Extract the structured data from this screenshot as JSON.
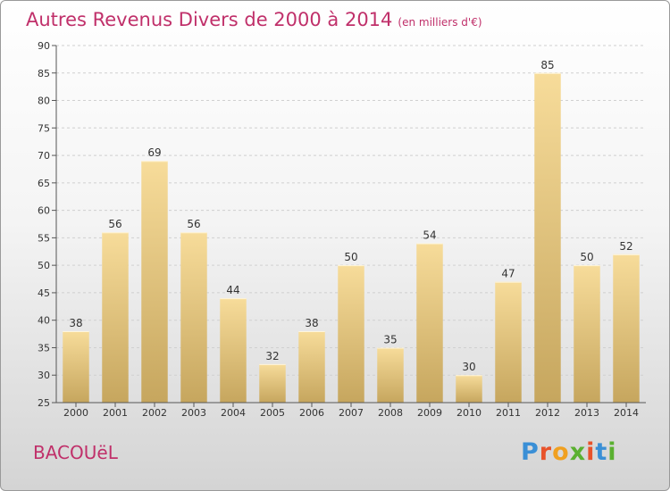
{
  "header": {
    "title": "Autres Revenus Divers de 2000 à 2014",
    "unit": "(en milliers d'€)"
  },
  "place": "BACOUëL",
  "logo": {
    "text": "Proxiti",
    "colors": [
      "#3a8fd6",
      "#e8522a",
      "#f0a020",
      "#5ab030",
      "#e8522a",
      "#3a8fd6",
      "#5ab030"
    ]
  },
  "chart_data": {
    "type": "bar",
    "categories": [
      "2000",
      "2001",
      "2002",
      "2003",
      "2004",
      "2005",
      "2006",
      "2007",
      "2008",
      "2009",
      "2010",
      "2011",
      "2012",
      "2013",
      "2014"
    ],
    "values": [
      38,
      56,
      69,
      56,
      44,
      32,
      38,
      50,
      35,
      54,
      30,
      47,
      85,
      50,
      52
    ],
    "ylim": [
      25,
      90
    ],
    "yticks": [
      25,
      30,
      35,
      40,
      45,
      50,
      55,
      60,
      65,
      70,
      75,
      80,
      85,
      90
    ],
    "grid": true,
    "bar_color_top": "#f7dc9a",
    "bar_color_bottom": "#c6a65e"
  }
}
